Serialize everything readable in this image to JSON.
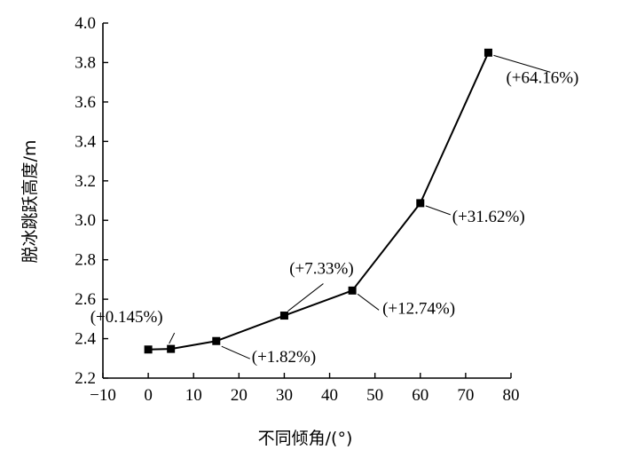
{
  "chart_data": {
    "type": "line",
    "xlabel": "不同倾角/(°)",
    "ylabel": "脱冰跳跃高度/m",
    "xlim": [
      -10,
      80
    ],
    "ylim": [
      2.2,
      4.0
    ],
    "x_ticks": [
      -10,
      0,
      10,
      20,
      30,
      40,
      50,
      60,
      70,
      80
    ],
    "x_tick_labels": [
      "−10",
      "0",
      "10",
      "20",
      "30",
      "40",
      "50",
      "60",
      "70",
      "80"
    ],
    "y_ticks": [
      2.2,
      2.4,
      2.6,
      2.8,
      3.0,
      3.2,
      3.4,
      3.6,
      3.8,
      4.0
    ],
    "y_tick_labels": [
      "2.2",
      "2.4",
      "2.6",
      "2.8",
      "3.0",
      "3.2",
      "3.4",
      "3.6",
      "3.8",
      "4.0"
    ],
    "grid": false,
    "marker": "square",
    "line_color": "#000000",
    "series": [
      {
        "x": [
          0,
          5,
          15,
          30,
          45,
          60,
          75
        ],
        "y": [
          2.345,
          2.348,
          2.388,
          2.517,
          2.644,
          3.087,
          3.85
        ]
      }
    ],
    "annotations": [
      {
        "text": "(+0.145%)",
        "x": 5
      },
      {
        "text": "(+1.82%)",
        "x": 15
      },
      {
        "text": "(+7.33%)",
        "x": 30
      },
      {
        "text": "(+12.74%)",
        "x": 45
      },
      {
        "text": "(+31.62%)",
        "x": 60
      },
      {
        "text": "(+64.16%)",
        "x": 75
      }
    ]
  }
}
